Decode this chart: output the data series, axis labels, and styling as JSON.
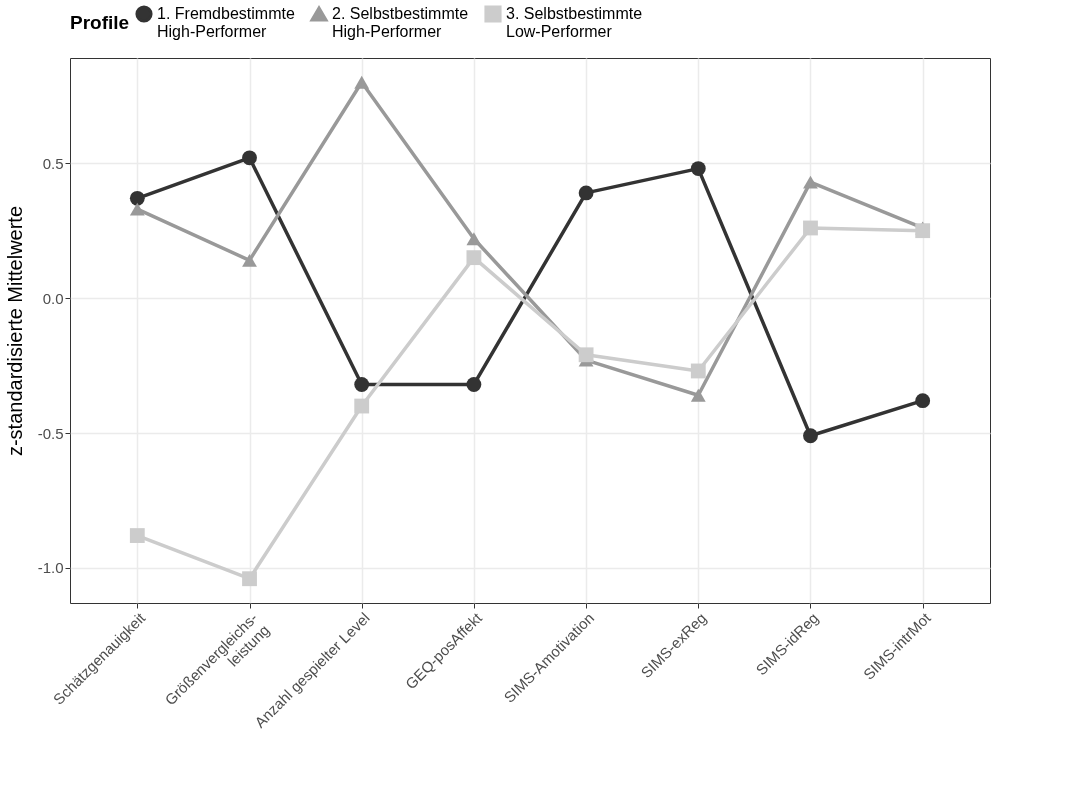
{
  "chart_data": {
    "type": "line",
    "ylabel": "z-standardisierte Mittelwerte",
    "legend_title": "Profile",
    "legend": "top",
    "grid": true,
    "categories": [
      "Schätzgenauigkeit",
      "Größenvergleichs-\nleistung",
      "Anzahl gespielter Level",
      "GEQ-posAffekt",
      "SIMS-Amotivation",
      "SIMS-exReg",
      "SIMS-idReg",
      "SIMS-intrMot"
    ],
    "ylim": [
      -1.13,
      0.89
    ],
    "yticks": [
      {
        "value": -1.0,
        "label": "-1.0"
      },
      -0.5,
      {
        "value": 0,
        "label": "0.0"
      },
      0.5
    ],
    "series": [
      {
        "name": "1. Fremdbestimmte\nHigh-Performer",
        "color": "#333333",
        "marker": "circle",
        "values": [
          0.37,
          0.52,
          -0.32,
          -0.32,
          0.39,
          0.48,
          -0.51,
          -0.38
        ]
      },
      {
        "name": "2. Selbstbestimmte\nHigh-Performer",
        "color": "#999999",
        "marker": "triangle",
        "values": [
          0.33,
          0.14,
          0.8,
          0.22,
          -0.23,
          -0.36,
          0.43,
          0.26
        ]
      },
      {
        "name": "3. Selbstbestimmte\nLow-Performer",
        "color": "#cccccc",
        "marker": "square",
        "values": [
          -0.88,
          -1.04,
          -0.4,
          0.15,
          -0.21,
          -0.27,
          0.26,
          0.25
        ]
      }
    ]
  }
}
